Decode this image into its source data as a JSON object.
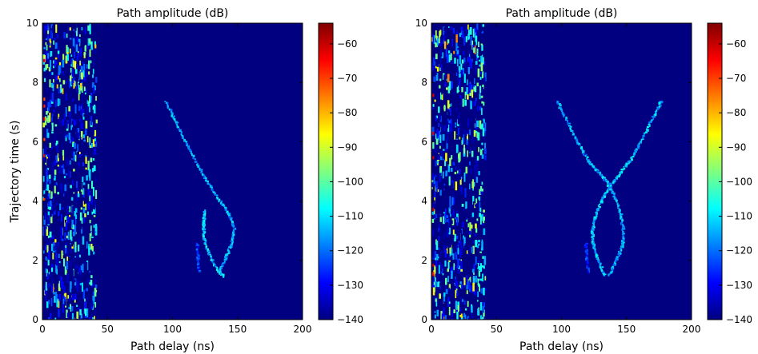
{
  "chart_data": [
    {
      "type": "heatmap",
      "title": "Path amplitude (dB)",
      "xlabel": "Path delay (ns)",
      "ylabel": "Trajectory time (s)",
      "xlim": [
        0,
        200
      ],
      "ylim": [
        0,
        10
      ],
      "x_ticks": [
        0,
        50,
        100,
        150,
        200
      ],
      "y_ticks": [
        0,
        2,
        4,
        6,
        8,
        10
      ],
      "colormap": "jet",
      "background_value": -140,
      "colorbar": {
        "range": [
          -140,
          -54
        ],
        "ticks": [
          -60,
          -70,
          -80,
          -90,
          -100,
          -110,
          -120,
          -130,
          -140
        ],
        "tick_labels": [
          "−60",
          "−70",
          "−80",
          "−90",
          "−100",
          "−110",
          "−120",
          "−130",
          "−140"
        ]
      },
      "regions": [
        {
          "name": "dense scatter",
          "delay_range": [
            0,
            41
          ],
          "time_range": [
            0,
            10
          ],
          "amplitude_range": [
            -140,
            -85
          ]
        }
      ],
      "traces": [
        {
          "name": "path branch 1",
          "points": [
            [
              94,
              7.4
            ],
            [
              102,
              6.7
            ],
            [
              110,
              6.0
            ],
            [
              118,
              5.3
            ],
            [
              126,
              4.7
            ],
            [
              135,
              4.1
            ],
            [
              143,
              3.6
            ],
            [
              147,
              3.1
            ],
            [
              145,
              2.6
            ],
            [
              140,
              2.1
            ],
            [
              135,
              1.6
            ]
          ],
          "amplitude": -115
        },
        {
          "name": "path branch 2",
          "points": [
            [
              124,
              3.7
            ],
            [
              123,
              3.2
            ],
            [
              124,
              2.7
            ],
            [
              128,
              2.2
            ],
            [
              134,
              1.7
            ],
            [
              139,
              1.5
            ]
          ],
          "amplitude": -112
        },
        {
          "name": "path branch 3",
          "points": [
            [
              118,
              2.6
            ],
            [
              119,
              2.1
            ],
            [
              120,
              1.6
            ]
          ],
          "amplitude": -125
        }
      ]
    },
    {
      "type": "heatmap",
      "title": "Path amplitude (dB)",
      "xlabel": "Path delay (ns)",
      "ylabel": "",
      "xlim": [
        0,
        200
      ],
      "ylim": [
        0,
        10
      ],
      "x_ticks": [
        0,
        50,
        100,
        150,
        200
      ],
      "y_ticks": [
        0,
        2,
        4,
        6,
        8,
        10
      ],
      "colormap": "jet",
      "background_value": -140,
      "colorbar": {
        "range": [
          -140,
          -54
        ],
        "ticks": [
          -60,
          -70,
          -80,
          -90,
          -100,
          -110,
          -120,
          -130,
          -140
        ],
        "tick_labels": [
          "−60",
          "−70",
          "−80",
          "−90",
          "−100",
          "−110",
          "−120",
          "−130",
          "−140"
        ]
      },
      "regions": [
        {
          "name": "dense scatter",
          "delay_range": [
            0,
            41
          ],
          "time_range": [
            0,
            10
          ],
          "amplitude_range": [
            -140,
            -85
          ]
        }
      ],
      "traces": [
        {
          "name": "path branch 1",
          "points": [
            [
              96,
              7.4
            ],
            [
              104,
              6.7
            ],
            [
              112,
              6.0
            ],
            [
              120,
              5.4
            ],
            [
              128,
              5.0
            ],
            [
              134,
              4.7
            ],
            [
              140,
              4.2
            ],
            [
              145,
              3.6
            ],
            [
              147,
              3.0
            ],
            [
              146,
              2.5
            ],
            [
              141,
              2.0
            ],
            [
              136,
              1.5
            ]
          ],
          "amplitude": -115
        },
        {
          "name": "path branch 2",
          "points": [
            [
              176,
              7.4
            ],
            [
              168,
              6.7
            ],
            [
              160,
              6.0
            ],
            [
              152,
              5.4
            ],
            [
              145,
              5.0
            ],
            [
              138,
              4.6
            ],
            [
              132,
              4.2
            ],
            [
              126,
              3.6
            ],
            [
              123,
              3.0
            ],
            [
              124,
              2.5
            ],
            [
              128,
              2.0
            ],
            [
              133,
              1.5
            ]
          ],
          "amplitude": -113
        },
        {
          "name": "path branch 3",
          "points": [
            [
              118,
              2.6
            ],
            [
              119,
              2.1
            ],
            [
              120,
              1.6
            ]
          ],
          "amplitude": -125
        }
      ]
    }
  ]
}
